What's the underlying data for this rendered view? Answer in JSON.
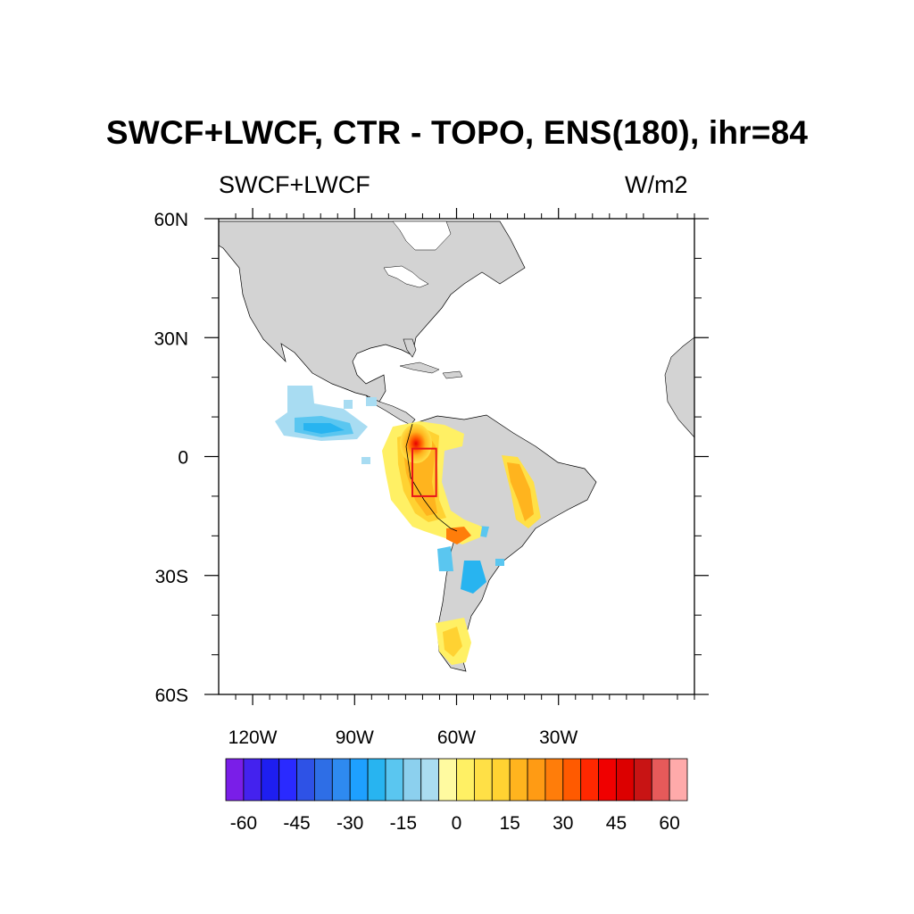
{
  "title": "SWCF+LWCF, CTR - TOPO, ENS(180), ihr=84",
  "left_string": "SWCF+LWCF",
  "right_string": "W/m2",
  "map": {
    "lon_range": [
      -130,
      10
    ],
    "lat_range": [
      -60,
      60
    ],
    "lon_ticks": [
      {
        "value": -120,
        "label": "120W"
      },
      {
        "value": -90,
        "label": "90W"
      },
      {
        "value": -60,
        "label": "60W"
      },
      {
        "value": -30,
        "label": "30W"
      }
    ],
    "lat_ticks": [
      {
        "value": 60,
        "label": "60N"
      },
      {
        "value": 30,
        "label": "30N"
      },
      {
        "value": 0,
        "label": "0"
      },
      {
        "value": -30,
        "label": "30S"
      },
      {
        "value": -60,
        "label": "60S"
      }
    ],
    "land_color": "#d3d3d3",
    "highlight_box": {
      "lon": [
        -73,
        -66
      ],
      "lat": [
        -10,
        2
      ],
      "color": "#e8141a"
    }
  },
  "colorbar": {
    "labels": [
      "-60",
      "-45",
      "-30",
      "-15",
      "0",
      "15",
      "30",
      "45",
      "60"
    ],
    "colors": [
      "#7a1ee8",
      "#4422ee",
      "#1e1ef0",
      "#2a2aff",
      "#2e52e6",
      "#2e6ee6",
      "#2e8af0",
      "#1ea0ff",
      "#28b4f0",
      "#5ac6f0",
      "#8cd0ee",
      "#aadcf0",
      "#fffaa0",
      "#fff064",
      "#ffe046",
      "#ffd232",
      "#ffb41e",
      "#ff9b14",
      "#ff7d0a",
      "#ff5a00",
      "#ff2800",
      "#f00000",
      "#dc0000",
      "#c81414",
      "#e65a5a",
      "#ffaaaa"
    ]
  }
}
